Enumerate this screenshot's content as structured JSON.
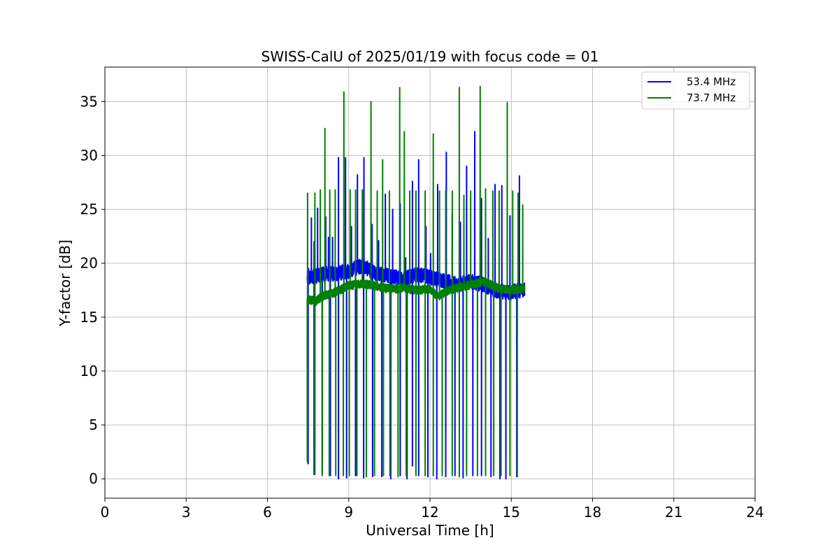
{
  "chart_data": {
    "type": "line",
    "title": "SWISS-CalU of 2025/01/19 with focus code = 01",
    "xlabel": "Universal Time [h]",
    "ylabel": "Y-factor [dB]",
    "xlim": [
      0,
      24
    ],
    "ylim": [
      -1.8,
      38.2
    ],
    "xticks": [
      0,
      3,
      6,
      9,
      12,
      15,
      18,
      21,
      24
    ],
    "yticks": [
      0,
      5,
      10,
      15,
      20,
      25,
      30,
      35
    ],
    "grid": true,
    "legend_position": "top-right",
    "data_range_hours": [
      7.47,
      15.5
    ],
    "series": [
      {
        "name": "53.4 MHz",
        "color": "#0000ff",
        "baseline": [
          [
            7.5,
            18.6
          ],
          [
            8.0,
            19.0
          ],
          [
            8.5,
            19.0
          ],
          [
            9.0,
            19.3
          ],
          [
            9.5,
            19.8
          ],
          [
            10.0,
            19.0
          ],
          [
            10.5,
            18.9
          ],
          [
            11.0,
            18.5
          ],
          [
            11.5,
            19.0
          ],
          [
            12.0,
            18.7
          ],
          [
            12.5,
            18.4
          ],
          [
            13.0,
            18.0
          ],
          [
            13.5,
            18.3
          ],
          [
            14.0,
            18.0
          ],
          [
            14.5,
            17.4
          ],
          [
            15.0,
            17.3
          ],
          [
            15.5,
            17.6
          ]
        ],
        "spikes_max": [
          [
            7.52,
            19.5
          ],
          [
            7.62,
            24.2
          ],
          [
            7.72,
            22.0
          ],
          [
            7.85,
            25.1
          ],
          [
            8.02,
            19.6
          ],
          [
            8.15,
            24.3
          ],
          [
            8.25,
            22.4
          ],
          [
            8.4,
            22.4
          ],
          [
            8.62,
            29.8
          ],
          [
            8.88,
            29.8
          ],
          [
            9.1,
            23.4
          ],
          [
            9.32,
            28.2
          ],
          [
            9.56,
            29.8
          ],
          [
            9.86,
            23.6
          ],
          [
            10.1,
            22.1
          ],
          [
            10.35,
            26.4
          ],
          [
            10.62,
            25.0
          ],
          [
            10.9,
            25.5
          ],
          [
            11.1,
            20.5
          ],
          [
            11.35,
            27.6
          ],
          [
            11.58,
            29.6
          ],
          [
            11.85,
            23.4
          ],
          [
            12.02,
            20.9
          ],
          [
            12.28,
            27.3
          ],
          [
            12.6,
            30.3
          ],
          [
            12.82,
            24.6
          ],
          [
            13.12,
            23.8
          ],
          [
            13.35,
            29.0
          ],
          [
            13.65,
            32.2
          ],
          [
            13.9,
            26.0
          ],
          [
            14.15,
            22.3
          ],
          [
            14.4,
            27.3
          ],
          [
            14.65,
            27.2
          ],
          [
            14.95,
            24.4
          ],
          [
            15.3,
            28.1
          ]
        ],
        "spikes_min": [
          [
            7.5,
            1.4
          ],
          [
            7.72,
            0.4
          ],
          [
            8.02,
            0.5
          ],
          [
            8.32,
            0.3
          ],
          [
            8.62,
            0.0
          ],
          [
            8.92,
            0.1
          ],
          [
            9.25,
            0.3
          ],
          [
            9.55,
            0.1
          ],
          [
            9.88,
            0.2
          ],
          [
            10.22,
            0.2
          ],
          [
            10.55,
            0.0
          ],
          [
            10.9,
            0.3
          ],
          [
            11.15,
            0.0
          ],
          [
            11.35,
            1.2
          ],
          [
            11.58,
            0.3
          ],
          [
            11.92,
            0.2
          ],
          [
            12.25,
            0.0
          ],
          [
            12.58,
            0.2
          ],
          [
            12.92,
            0.3
          ],
          [
            13.22,
            0.1
          ],
          [
            13.58,
            0.3
          ],
          [
            13.9,
            0.3
          ],
          [
            14.25,
            0.2
          ],
          [
            14.58,
            0.0
          ],
          [
            14.8,
            0.0
          ],
          [
            15.2,
            0.2
          ]
        ]
      },
      {
        "name": "73.7 MHz",
        "color": "#008000",
        "baseline": [
          [
            7.5,
            16.6
          ],
          [
            7.8,
            16.5
          ],
          [
            8.0,
            16.9
          ],
          [
            8.5,
            17.3
          ],
          [
            9.0,
            17.9
          ],
          [
            9.5,
            18.1
          ],
          [
            10.0,
            17.9
          ],
          [
            10.5,
            17.6
          ],
          [
            11.0,
            17.7
          ],
          [
            11.5,
            17.5
          ],
          [
            12.0,
            17.6
          ],
          [
            12.3,
            16.9
          ],
          [
            12.6,
            17.4
          ],
          [
            13.0,
            17.7
          ],
          [
            13.5,
            18.0
          ],
          [
            14.0,
            18.3
          ],
          [
            14.5,
            17.7
          ],
          [
            15.0,
            17.5
          ],
          [
            15.5,
            17.7
          ]
        ],
        "spikes_max": [
          [
            7.48,
            26.5
          ],
          [
            7.75,
            26.5
          ],
          [
            7.95,
            26.8
          ],
          [
            8.12,
            32.5
          ],
          [
            8.3,
            26.8
          ],
          [
            8.5,
            26.8
          ],
          [
            8.82,
            35.9
          ],
          [
            9.05,
            26.8
          ],
          [
            9.25,
            26.8
          ],
          [
            9.5,
            26.8
          ],
          [
            9.82,
            35.0
          ],
          [
            10.05,
            26.7
          ],
          [
            10.25,
            29.6
          ],
          [
            10.5,
            26.7
          ],
          [
            10.88,
            36.3
          ],
          [
            11.05,
            32.2
          ],
          [
            11.25,
            26.7
          ],
          [
            11.48,
            26.7
          ],
          [
            11.82,
            26.7
          ],
          [
            12.12,
            32.0
          ],
          [
            12.35,
            26.7
          ],
          [
            12.58,
            26.7
          ],
          [
            12.82,
            26.7
          ],
          [
            13.08,
            36.3
          ],
          [
            13.25,
            26.3
          ],
          [
            13.5,
            26.7
          ],
          [
            13.85,
            36.4
          ],
          [
            14.05,
            26.9
          ],
          [
            14.32,
            26.7
          ],
          [
            14.55,
            26.7
          ],
          [
            14.85,
            34.9
          ],
          [
            15.05,
            26.7
          ],
          [
            15.25,
            26.5
          ],
          [
            15.42,
            25.4
          ]
        ],
        "spikes_min": [
          [
            7.47,
            1.6
          ],
          [
            7.75,
            0.4
          ],
          [
            8.02,
            0.3
          ],
          [
            8.28,
            0.3
          ],
          [
            8.52,
            0.3
          ],
          [
            8.8,
            0.3
          ],
          [
            9.02,
            0.3
          ],
          [
            9.3,
            0.3
          ],
          [
            9.65,
            0.2
          ],
          [
            9.95,
            0.3
          ],
          [
            10.28,
            0.3
          ],
          [
            10.52,
            0.3
          ],
          [
            10.82,
            0.2
          ],
          [
            11.12,
            0.3
          ],
          [
            11.48,
            0.3
          ],
          [
            11.82,
            0.3
          ],
          [
            12.12,
            0.3
          ],
          [
            12.45,
            0.3
          ],
          [
            12.82,
            0.3
          ],
          [
            13.08,
            0.2
          ],
          [
            13.35,
            0.3
          ],
          [
            13.75,
            0.3
          ],
          [
            14.05,
            0.3
          ],
          [
            14.35,
            0.3
          ],
          [
            14.62,
            0.3
          ],
          [
            14.95,
            0.3
          ],
          [
            15.22,
            0.2
          ]
        ]
      }
    ]
  }
}
